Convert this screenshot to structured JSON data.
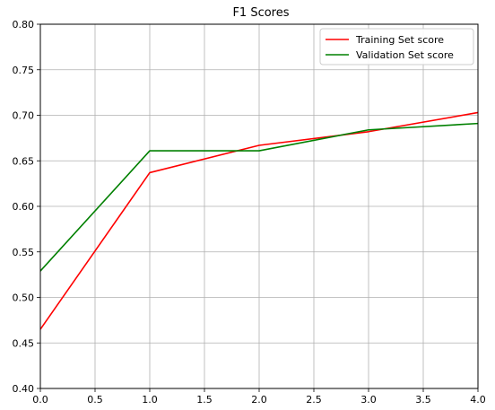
{
  "chart_data": {
    "type": "line",
    "title": "F1 Scores",
    "xlabel": "",
    "ylabel": "",
    "xlim": [
      0.0,
      4.0
    ],
    "ylim": [
      0.4,
      0.8
    ],
    "xticks": [
      "0.0",
      "0.5",
      "1.0",
      "1.5",
      "2.0",
      "2.5",
      "3.0",
      "3.5",
      "4.0"
    ],
    "yticks": [
      "0.40",
      "0.45",
      "0.50",
      "0.55",
      "0.60",
      "0.65",
      "0.70",
      "0.75",
      "0.80"
    ],
    "grid": true,
    "legend_position": "top-right",
    "x": [
      0,
      1,
      2,
      3,
      4
    ],
    "series": [
      {
        "name": "Training Set score",
        "color": "#ff0000",
        "values": [
          0.465,
          0.637,
          0.667,
          0.682,
          0.703
        ]
      },
      {
        "name": "Validation Set score",
        "color": "#008000",
        "values": [
          0.529,
          0.661,
          0.661,
          0.684,
          0.691
        ]
      }
    ]
  }
}
